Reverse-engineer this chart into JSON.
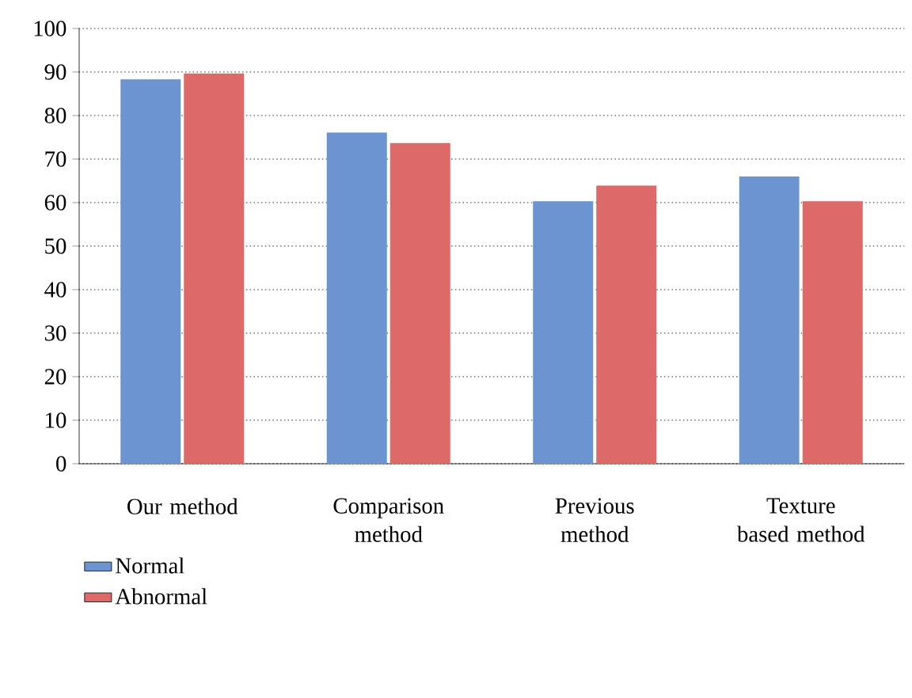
{
  "chart_data": {
    "type": "bar",
    "categories": [
      "Our method",
      "Comparison method",
      "Previous method",
      "Texture based method"
    ],
    "series": [
      {
        "name": "Normal",
        "color": "#6b94d0",
        "values": [
          88.3,
          76.1,
          60.3,
          66.0
        ]
      },
      {
        "name": "Abnormal",
        "color": "#dd6a68",
        "values": [
          89.7,
          73.7,
          63.9,
          60.3
        ]
      }
    ],
    "ylim": [
      0,
      100
    ],
    "yticks": [
      0,
      10,
      20,
      30,
      40,
      50,
      60,
      70,
      80,
      90,
      100
    ],
    "grid": "y",
    "legend": "bottom left"
  }
}
